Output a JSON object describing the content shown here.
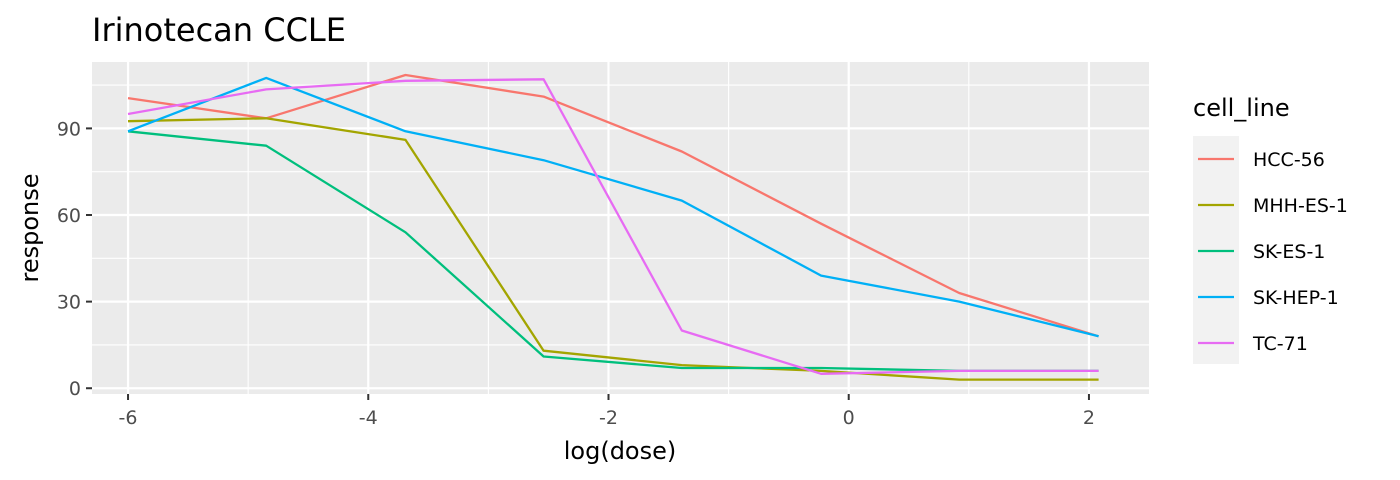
{
  "chart_data": {
    "type": "line",
    "title": "Irinotecan CCLE",
    "xlabel": "log(dose)",
    "ylabel": "response",
    "xlim": [
      -6.3,
      2.5
    ],
    "ylim": [
      -2,
      113
    ],
    "x_ticks": [
      -6,
      -4,
      -2,
      0,
      2
    ],
    "x_tick_labels": [
      "-6",
      "-4",
      "-2",
      "0",
      "2"
    ],
    "y_ticks": [
      0,
      30,
      60,
      90
    ],
    "y_tick_labels": [
      "0",
      "30",
      "60",
      "90"
    ],
    "grid": true,
    "legend": {
      "title": "cell_line",
      "position": "right"
    },
    "series": [
      {
        "name": "HCC-56",
        "color": "#F8766D",
        "x": [
          -6.0,
          -4.85,
          -3.69,
          -2.54,
          -1.39,
          -0.23,
          0.92,
          2.08
        ],
        "y": [
          100.5,
          93.5,
          108.5,
          101,
          82,
          57,
          33,
          18
        ]
      },
      {
        "name": "MHH-ES-1",
        "color": "#A3A500",
        "x": [
          -6.0,
          -4.85,
          -3.69,
          -2.54,
          -1.39,
          -0.23,
          0.92,
          2.08
        ],
        "y": [
          92.5,
          93.5,
          86,
          13,
          8,
          6,
          3,
          3
        ]
      },
      {
        "name": "SK-ES-1",
        "color": "#00BF7D",
        "x": [
          -6.0,
          -4.85,
          -3.69,
          -2.54,
          -1.39,
          -0.23,
          0.92,
          2.08
        ],
        "y": [
          89,
          84,
          54,
          11,
          7,
          7,
          6,
          6
        ]
      },
      {
        "name": "SK-HEP-1",
        "color": "#00B0F6",
        "x": [
          -6.0,
          -4.85,
          -3.69,
          -2.54,
          -1.39,
          -0.23,
          0.92,
          2.08
        ],
        "y": [
          89,
          107.5,
          89,
          79,
          65,
          39,
          30,
          18
        ]
      },
      {
        "name": "TC-71",
        "color": "#E76BF3",
        "x": [
          -6.0,
          -4.85,
          -3.69,
          -2.54,
          -1.39,
          -0.23,
          0.92,
          2.08
        ],
        "y": [
          95,
          103.5,
          106.5,
          107,
          20,
          5,
          6,
          6
        ]
      }
    ]
  }
}
